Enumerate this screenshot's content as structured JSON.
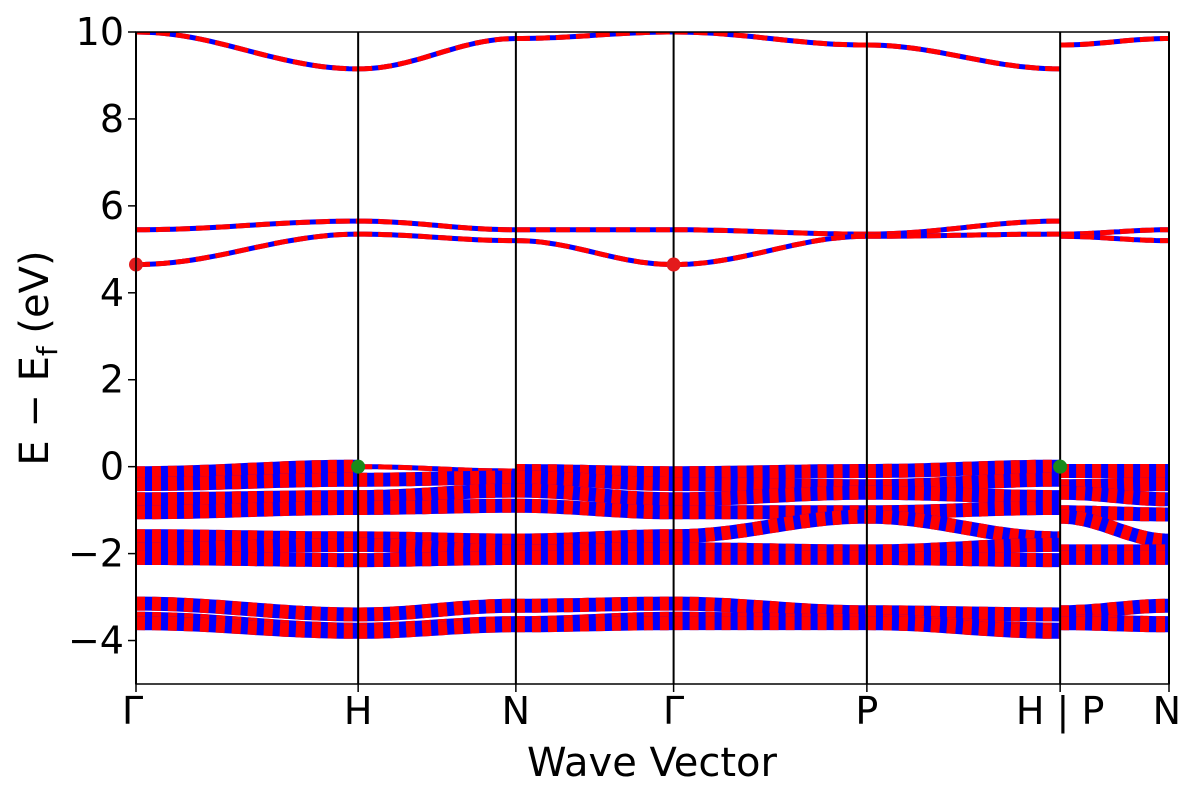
{
  "chart_data": {
    "type": "line",
    "title": "",
    "xlabel": "Wave Vector",
    "ylabel": {
      "main": "E − E",
      "subscript": "f",
      "unit": " (eV)"
    },
    "ylim": [
      -5,
      10
    ],
    "yticks": [
      {
        "value": -4,
        "label": "−4"
      },
      {
        "value": -2,
        "label": "−2"
      },
      {
        "value": 0,
        "label": "0"
      },
      {
        "value": 2,
        "label": "2"
      },
      {
        "value": 4,
        "label": "4"
      },
      {
        "value": 6,
        "label": "6"
      },
      {
        "value": 8,
        "label": "8"
      },
      {
        "value": 10,
        "label": "10"
      }
    ],
    "xlim": [
      0,
      4.65
    ],
    "high_symmetry_points": [
      {
        "x": 0,
        "label": "Γ"
      },
      {
        "x": 1.0,
        "label": "H"
      },
      {
        "x": 1.71,
        "label": "N"
      },
      {
        "x": 2.42,
        "label": "Γ"
      },
      {
        "x": 3.29,
        "label": "P"
      },
      {
        "x": 4.16,
        "label": "H | P"
      },
      {
        "x": 4.65,
        "label": "N"
      }
    ],
    "grid": false,
    "band_colors": {
      "spin_a": "#0000ff",
      "spin_b": "#ff0000"
    },
    "segments": [
      {
        "x": [
          0,
          1.0
        ],
        "bands": [
          [
            10.0,
            9.15
          ],
          [
            5.45,
            5.65
          ],
          [
            4.65,
            5.35
          ],
          [
            -0.15,
            0.0
          ],
          [
            -0.4,
            -0.3
          ],
          [
            -0.75,
            -0.7
          ],
          [
            -1.05,
            -0.95
          ],
          [
            -1.6,
            -1.65
          ],
          [
            -1.9,
            -1.8
          ],
          [
            -2.1,
            -2.15
          ],
          [
            -3.15,
            -3.4
          ],
          [
            -3.5,
            -3.75
          ],
          [
            -3.6,
            -3.8
          ]
        ]
      },
      {
        "x": [
          1.0,
          1.71
        ],
        "bands": [
          [
            9.15,
            9.85
          ],
          [
            5.65,
            5.45
          ],
          [
            5.35,
            5.2
          ],
          [
            0.0,
            -0.1
          ],
          [
            -0.3,
            -0.25
          ],
          [
            -0.7,
            -0.55
          ],
          [
            -0.95,
            -0.9
          ],
          [
            -1.65,
            -1.7
          ],
          [
            -1.8,
            -1.95
          ],
          [
            -2.15,
            -2.1
          ],
          [
            -3.4,
            -3.2
          ],
          [
            -3.75,
            -3.6
          ],
          [
            -3.8,
            -3.65
          ]
        ]
      },
      {
        "x": [
          1.71,
          2.42
        ],
        "bands": [
          [
            9.85,
            10.0
          ],
          [
            5.45,
            5.45
          ],
          [
            5.2,
            4.65
          ],
          [
            -0.1,
            -0.15
          ],
          [
            -0.25,
            -0.4
          ],
          [
            -0.55,
            -0.75
          ],
          [
            -0.9,
            -1.05
          ],
          [
            -1.7,
            -1.6
          ],
          [
            -1.95,
            -1.9
          ],
          [
            -2.1,
            -2.1
          ],
          [
            -3.2,
            -3.15
          ],
          [
            -3.6,
            -3.5
          ],
          [
            -3.65,
            -3.6
          ]
        ]
      },
      {
        "x": [
          2.42,
          3.29
        ],
        "bands": [
          [
            10.0,
            9.7
          ],
          [
            5.45,
            5.35
          ],
          [
            4.65,
            5.3
          ],
          [
            -0.15,
            -0.1
          ],
          [
            -0.4,
            -0.45
          ],
          [
            -0.75,
            -0.6
          ],
          [
            -1.05,
            -1.05
          ],
          [
            -1.6,
            -1.15
          ],
          [
            -1.9,
            -1.95
          ],
          [
            -2.1,
            -2.1
          ],
          [
            -3.15,
            -3.35
          ],
          [
            -3.5,
            -3.55
          ],
          [
            -3.6,
            -3.6
          ]
        ]
      },
      {
        "x": [
          3.29,
          4.16
        ],
        "bands": [
          [
            9.7,
            9.15
          ],
          [
            5.35,
            5.65
          ],
          [
            5.3,
            5.35
          ],
          [
            -0.1,
            0.0
          ],
          [
            -0.45,
            -0.3
          ],
          [
            -0.6,
            -0.7
          ],
          [
            -1.05,
            -0.95
          ],
          [
            -1.15,
            -1.65
          ],
          [
            -1.95,
            -1.8
          ],
          [
            -2.1,
            -2.15
          ],
          [
            -3.35,
            -3.4
          ],
          [
            -3.55,
            -3.75
          ],
          [
            -3.6,
            -3.8
          ]
        ]
      },
      {
        "x": [
          4.16,
          4.65
        ],
        "bands": [
          [
            9.7,
            9.85
          ],
          [
            5.35,
            5.45
          ],
          [
            5.3,
            5.2
          ],
          [
            -0.1,
            -0.1
          ],
          [
            -0.45,
            -0.4
          ],
          [
            -0.6,
            -0.75
          ],
          [
            -1.05,
            -1.1
          ],
          [
            -1.15,
            -1.7
          ],
          [
            -1.95,
            -1.95
          ],
          [
            -2.1,
            -2.1
          ],
          [
            -3.35,
            -3.2
          ],
          [
            -3.55,
            -3.6
          ],
          [
            -3.6,
            -3.65
          ]
        ]
      }
    ],
    "markers": [
      {
        "x": 0,
        "y": 4.65,
        "color": "#e31a1c"
      },
      {
        "x": 2.42,
        "y": 4.65,
        "color": "#e31a1c"
      },
      {
        "x": 1.0,
        "y": 0.0,
        "color": "#1a8a1a"
      },
      {
        "x": 4.16,
        "y": 0.0,
        "color": "#1a8a1a"
      }
    ]
  }
}
